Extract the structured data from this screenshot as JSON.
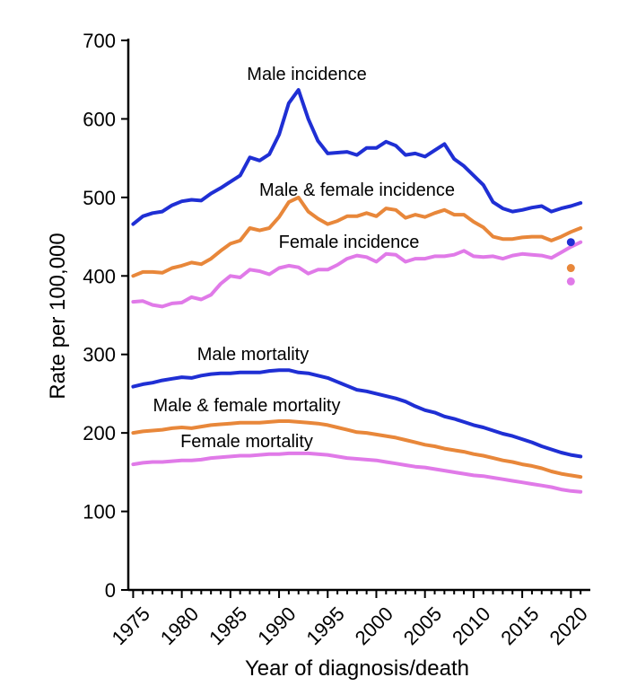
{
  "chart_data": {
    "type": "line",
    "title": "",
    "xlabel": "Year of diagnosis/death",
    "ylabel": "Rate per 100,000",
    "xlim": [
      1974.5,
      2022
    ],
    "ylim": [
      0,
      700
    ],
    "x_ticks": [
      1975,
      1980,
      1985,
      1990,
      1995,
      2000,
      2005,
      2010,
      2015,
      2020
    ],
    "y_ticks": [
      0,
      100,
      200,
      300,
      400,
      500,
      600,
      700
    ],
    "x": [
      1975,
      1976,
      1977,
      1978,
      1979,
      1980,
      1981,
      1982,
      1983,
      1984,
      1985,
      1986,
      1987,
      1988,
      1989,
      1990,
      1991,
      1992,
      1993,
      1994,
      1995,
      1996,
      1997,
      1998,
      1999,
      2000,
      2001,
      2002,
      2003,
      2004,
      2005,
      2006,
      2007,
      2008,
      2009,
      2010,
      2011,
      2012,
      2013,
      2014,
      2015,
      2016,
      2017,
      2018,
      2019,
      2020,
      2021
    ],
    "series": [
      {
        "name": "Male incidence",
        "label": "Male incidence",
        "color": "#1f2fd4",
        "values": [
          466,
          476,
          480,
          482,
          490,
          495,
          497,
          496,
          505,
          512,
          520,
          528,
          551,
          547,
          555,
          580,
          620,
          637,
          600,
          572,
          556,
          557,
          558,
          554,
          563,
          563,
          571,
          566,
          554,
          556,
          552,
          560,
          568,
          549,
          540,
          528,
          516,
          494,
          486,
          482,
          484,
          487,
          489,
          482,
          486,
          489,
          493
        ]
      },
      {
        "name": "Male & female incidence",
        "label": "Male & female incidence",
        "color": "#e8873a",
        "values": [
          400,
          405,
          405,
          404,
          410,
          413,
          417,
          415,
          422,
          432,
          441,
          445,
          461,
          458,
          461,
          475,
          494,
          500,
          482,
          473,
          466,
          470,
          476,
          476,
          480,
          476,
          486,
          484,
          474,
          478,
          475,
          480,
          484,
          478,
          478,
          469,
          462,
          450,
          447,
          447,
          449,
          450,
          450,
          445,
          450,
          456,
          461
        ]
      },
      {
        "name": "Female incidence",
        "label": "Female incidence",
        "color": "#e07ae8",
        "values": [
          367,
          368,
          363,
          361,
          365,
          366,
          373,
          370,
          376,
          390,
          400,
          398,
          408,
          406,
          402,
          410,
          413,
          411,
          403,
          408,
          408,
          414,
          422,
          426,
          424,
          418,
          428,
          427,
          418,
          422,
          422,
          425,
          425,
          427,
          432,
          425,
          424,
          425,
          422,
          426,
          428,
          427,
          426,
          423,
          430,
          437,
          443
        ]
      },
      {
        "name": "Male mortality",
        "label": "Male mortality",
        "color": "#1f2fd4",
        "values": [
          259,
          262,
          264,
          267,
          269,
          271,
          270,
          273,
          275,
          276,
          276,
          277,
          277,
          277,
          279,
          280,
          280,
          277,
          276,
          273,
          270,
          265,
          260,
          255,
          253,
          250,
          247,
          244,
          240,
          234,
          229,
          226,
          221,
          218,
          214,
          210,
          207,
          203,
          199,
          196,
          192,
          188,
          183,
          179,
          175,
          172,
          170
        ]
      },
      {
        "name": "Male & female mortality",
        "label": "Male & female mortality",
        "color": "#e8873a",
        "values": [
          200,
          202,
          203,
          204,
          206,
          207,
          206,
          208,
          210,
          211,
          212,
          213,
          213,
          213,
          214,
          215,
          215,
          214,
          213,
          212,
          210,
          207,
          204,
          201,
          200,
          198,
          196,
          194,
          191,
          188,
          185,
          183,
          180,
          178,
          176,
          173,
          171,
          168,
          165,
          163,
          160,
          158,
          155,
          151,
          148,
          146,
          144
        ]
      },
      {
        "name": "Female mortality",
        "label": "Female mortality",
        "color": "#e07ae8",
        "values": [
          160,
          162,
          163,
          163,
          164,
          165,
          165,
          166,
          168,
          169,
          170,
          171,
          171,
          172,
          173,
          173,
          174,
          174,
          174,
          173,
          172,
          170,
          168,
          167,
          166,
          165,
          163,
          161,
          159,
          157,
          156,
          154,
          152,
          150,
          148,
          146,
          145,
          143,
          141,
          139,
          137,
          135,
          133,
          131,
          128,
          126,
          125
        ]
      }
    ],
    "extra_points": [
      {
        "name": "Male incidence 2020 point",
        "x": 2020,
        "y": 443,
        "color": "#1f2fd4"
      },
      {
        "name": "Male & female incidence 2020 point",
        "x": 2020,
        "y": 410,
        "color": "#e8873a"
      },
      {
        "name": "Female incidence 2020 point",
        "x": 2020,
        "y": 393,
        "color": "#e07ae8"
      }
    ]
  }
}
